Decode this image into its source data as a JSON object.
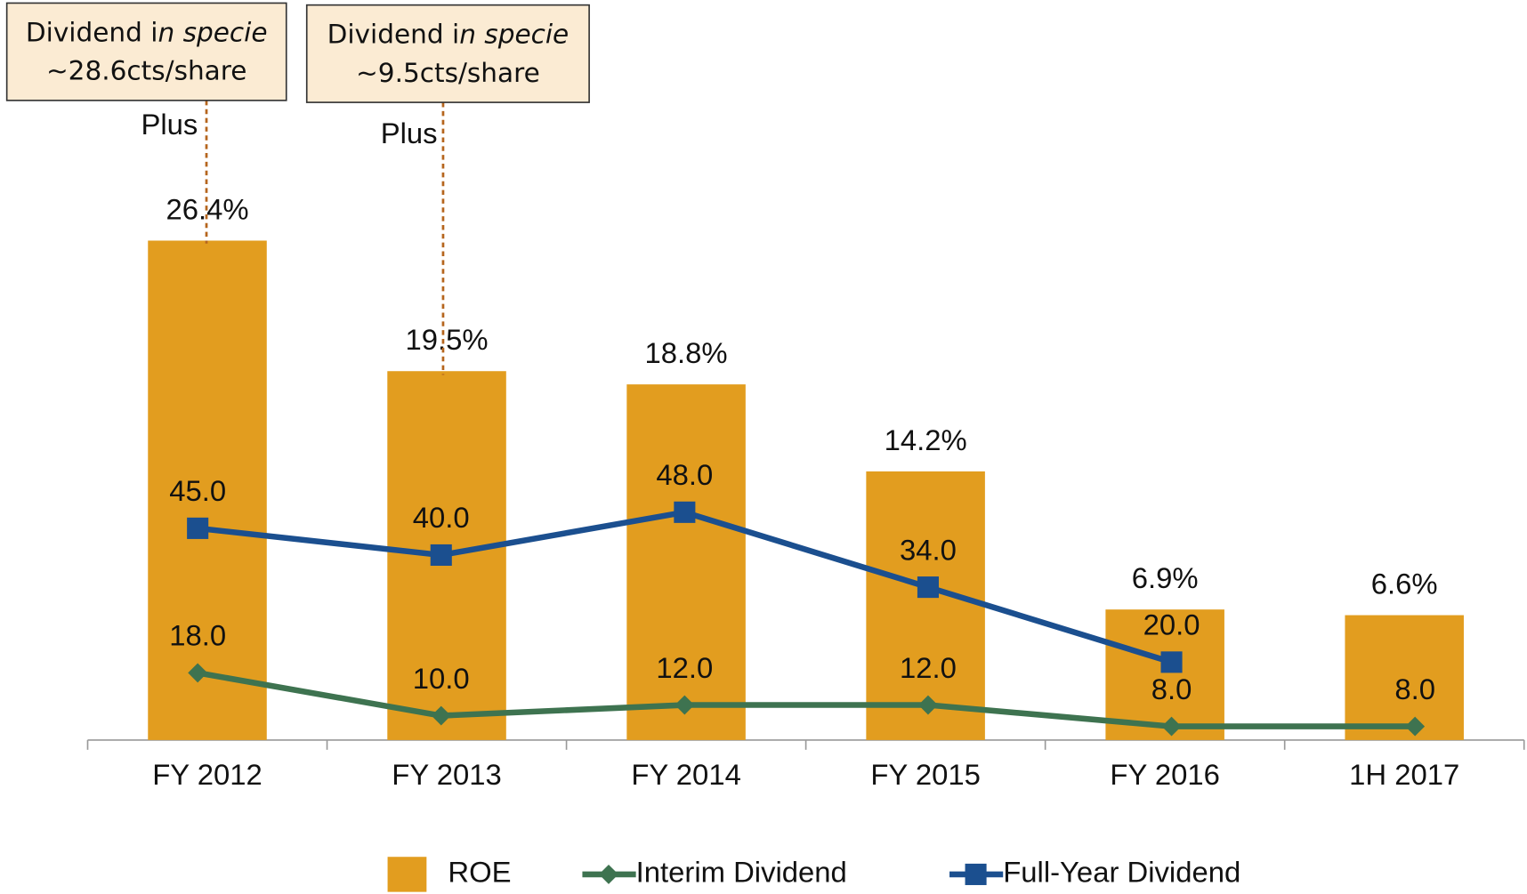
{
  "chart_data": {
    "type": "bar_line",
    "categories": [
      "FY 2012",
      "FY 2013",
      "FY 2014",
      "FY 2015",
      "FY 2016",
      "1H 2017"
    ],
    "bars": {
      "name": "ROE",
      "color": "#e29d1f",
      "values": [
        26.4,
        19.5,
        18.8,
        14.2,
        6.9,
        6.6
      ],
      "value_labels": [
        "26.4%",
        "19.5%",
        "18.8%",
        "14.2%",
        "6.9%",
        "6.6%"
      ]
    },
    "series": [
      {
        "name": "Interim Dividend",
        "color": "#3e7350",
        "marker": "diamond",
        "values": [
          18,
          10,
          12,
          12,
          8,
          8
        ],
        "value_labels": [
          "18.0",
          "10.0",
          "12.0",
          "12.0",
          "8.0",
          "8.0"
        ]
      },
      {
        "name": "Full-Year Dividend",
        "color": "#1b4f8f",
        "marker": "square",
        "values": [
          45,
          40,
          48,
          34,
          20,
          null
        ],
        "value_labels": [
          "45.0",
          "40.0",
          "48.0",
          "34.0",
          "20.0",
          null
        ]
      }
    ],
    "annotations": [
      {
        "text_plain": "Dividend i",
        "text_italic": "n specie",
        "amount": "~28.6cts/share",
        "note": "Plus"
      },
      {
        "text_plain": "Dividend i",
        "text_italic": "n specie",
        "amount": "~9.5cts/share",
        "note": "Plus"
      }
    ],
    "legend": "bottom"
  }
}
